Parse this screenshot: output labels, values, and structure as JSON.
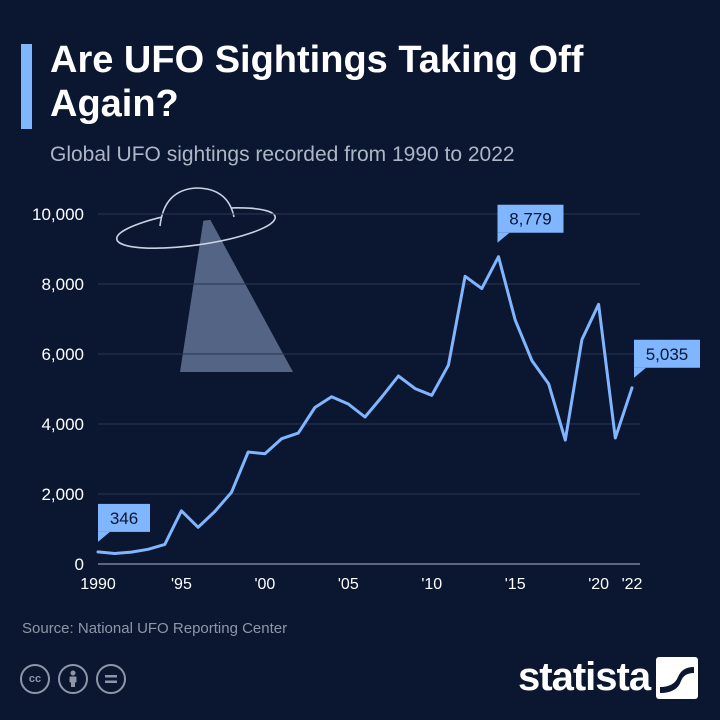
{
  "header": {
    "title": "Are UFO Sightings Taking Off Again?",
    "subtitle": "Global UFO sightings recorded from 1990 to 2022"
  },
  "footer": {
    "source": "Source: National UFO Reporting Center",
    "brand": "statista",
    "license_icons": [
      "cc-icon",
      "person-icon",
      "equals-icon"
    ]
  },
  "colors": {
    "background": "#0b1631",
    "line": "#7fb6ff",
    "grid": "#2a3553",
    "label_box": "#7fb6ff"
  },
  "chart_data": {
    "type": "line",
    "title": "Are UFO Sightings Taking Off Again?",
    "subtitle": "Global UFO sightings recorded from 1990 to 2022",
    "x": [
      1990,
      1991,
      1992,
      1993,
      1994,
      1995,
      1996,
      1997,
      1998,
      1999,
      2000,
      2001,
      2002,
      2003,
      2004,
      2005,
      2006,
      2007,
      2008,
      2009,
      2010,
      2011,
      2012,
      2013,
      2014,
      2015,
      2016,
      2017,
      2018,
      2019,
      2020,
      2021,
      2022
    ],
    "series": [
      {
        "values": [
          346,
          300,
          340,
          420,
          560,
          1520,
          1050,
          1500,
          2050,
          3200,
          3150,
          3580,
          3740,
          4470,
          4780,
          4570,
          4200,
          4770,
          5370,
          5010,
          4820,
          5680,
          8220,
          7870,
          8779,
          6970,
          5810,
          5150,
          3540,
          6410,
          7420,
          3600,
          5035
        ]
      }
    ],
    "xticks": [
      1990,
      1995,
      2000,
      2005,
      2010,
      2015,
      2020,
      2022
    ],
    "xtick_labels": [
      "1990",
      "'95",
      "'00",
      "'05",
      "'10",
      "'15",
      "'20",
      "'22"
    ],
    "yticks": [
      0,
      2000,
      4000,
      6000,
      8000,
      10000
    ],
    "ytick_labels": [
      "0",
      "2,000",
      "4,000",
      "6,000",
      "8,000",
      "10,000"
    ],
    "ylim": [
      0,
      10000
    ],
    "xlim": [
      1990,
      2022
    ],
    "grid": true,
    "annotations": [
      {
        "x": 1990,
        "y": 346,
        "label": "346"
      },
      {
        "x": 2014,
        "y": 8779,
        "label": "8,779"
      },
      {
        "x": 2022,
        "y": 5035,
        "label": "5,035"
      }
    ]
  }
}
